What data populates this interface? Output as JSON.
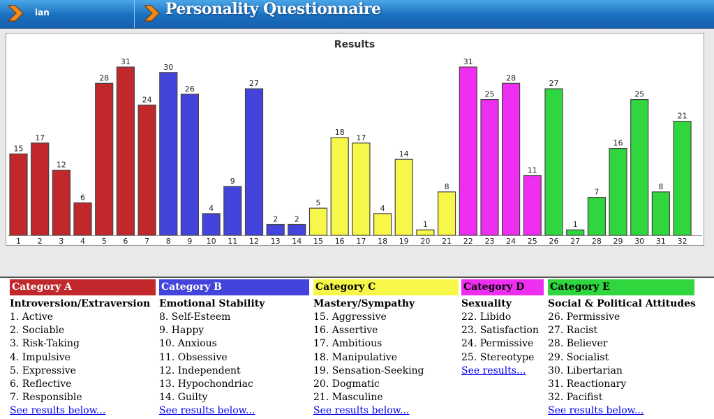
{
  "header": {
    "user": "ian",
    "title": "Personality Questionnaire"
  },
  "chart_data": {
    "type": "bar",
    "title": "Results",
    "categories": [
      "1",
      "2",
      "3",
      "4",
      "5",
      "6",
      "7",
      "8",
      "9",
      "10",
      "11",
      "12",
      "13",
      "14",
      "15",
      "16",
      "17",
      "18",
      "19",
      "20",
      "21",
      "22",
      "23",
      "24",
      "25",
      "26",
      "27",
      "28",
      "29",
      "30",
      "31",
      "32"
    ],
    "values": [
      15,
      17,
      12,
      6,
      28,
      31,
      24,
      30,
      26,
      4,
      9,
      27,
      2,
      2,
      5,
      18,
      17,
      4,
      14,
      1,
      8,
      31,
      25,
      28,
      11,
      27,
      1,
      7,
      16,
      25,
      8,
      21
    ],
    "bar_colors": [
      "#c0282b",
      "#c0282b",
      "#c0282b",
      "#c0282b",
      "#c0282b",
      "#c0282b",
      "#c0282b",
      "#4444dd",
      "#4444dd",
      "#4444dd",
      "#4444dd",
      "#4444dd",
      "#4444dd",
      "#4444dd",
      "#f7f74a",
      "#f7f74a",
      "#f7f74a",
      "#f7f74a",
      "#f7f74a",
      "#f7f74a",
      "#f7f74a",
      "#ee2ef0",
      "#ee2ef0",
      "#ee2ef0",
      "#ee2ef0",
      "#2fd63e",
      "#2fd63e",
      "#2fd63e",
      "#2fd63e",
      "#2fd63e",
      "#2fd63e",
      "#2fd63e"
    ],
    "ylim": [
      0,
      31
    ],
    "xlabel": "",
    "ylabel": "",
    "grid": false
  },
  "categories": [
    {
      "name": "Category A",
      "color": "#c0282b",
      "text_color": "#ffffff",
      "subtitle": "Introversion/Extraversion",
      "items": [
        "1. Active",
        "2. Sociable",
        "3. Risk-Taking",
        "4. Impulsive",
        "5. Expressive",
        "6. Reflective",
        "7. Responsible"
      ],
      "link": "See results below..."
    },
    {
      "name": "Category B",
      "color": "#4444dd",
      "text_color": "#ffffff",
      "subtitle": "Emotional Stability",
      "items": [
        "8. Self-Esteem",
        "9. Happy",
        "10. Anxious",
        "11. Obsessive",
        "12. Independent",
        "13. Hypochondriac",
        "14. Guilty"
      ],
      "link": "See results below..."
    },
    {
      "name": "Category C",
      "color": "#f7f74a",
      "text_color": "#000000",
      "subtitle": "Mastery/Sympathy",
      "items": [
        "15. Aggressive",
        "16. Assertive",
        "17. Ambitious",
        "18. Manipulative",
        "19. Sensation-Seeking",
        "20. Dogmatic",
        "21. Masculine"
      ],
      "link": "See results below..."
    },
    {
      "name": "Category D",
      "color": "#ee2ef0",
      "text_color": "#000000",
      "subtitle": "Sexuality",
      "items": [
        "22. Libido",
        "23. Satisfaction",
        "24. Permissive",
        "25. Stereotype"
      ],
      "link": "See results..."
    },
    {
      "name": "Category E",
      "color": "#2fd63e",
      "text_color": "#000000",
      "subtitle": "Social & Political Attitudes",
      "items": [
        "26. Permissive",
        "27. Racist",
        "28. Believer",
        "29. Socialist",
        "30. Libertarian",
        "31. Reactionary",
        "32. Pacifist"
      ],
      "link": "See results below..."
    }
  ]
}
